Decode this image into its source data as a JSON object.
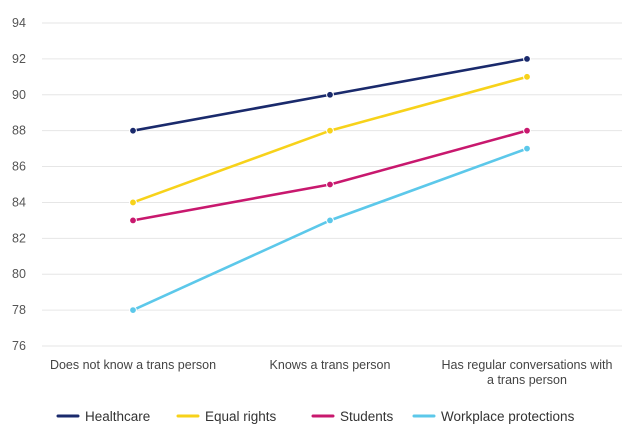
{
  "chart_data": {
    "type": "line",
    "title": "",
    "xlabel": "",
    "ylabel": "",
    "categories": [
      [
        "Does not know a trans person"
      ],
      [
        "Knows a trans person"
      ],
      [
        "Has regular conversations with",
        "a trans person"
      ]
    ],
    "ylim": [
      76,
      94
    ],
    "yticks": [
      76,
      78,
      80,
      82,
      84,
      86,
      88,
      90,
      92,
      94
    ],
    "grid": true,
    "legend_position": "bottom",
    "series": [
      {
        "name": "Healthcare",
        "color": "#1a2a6c",
        "values": [
          88,
          90,
          92
        ]
      },
      {
        "name": "Equal rights",
        "color": "#f7d21a",
        "values": [
          84,
          88,
          91
        ]
      },
      {
        "name": "Students",
        "color": "#c8186e",
        "values": [
          83,
          85,
          88
        ]
      },
      {
        "name": "Workplace protections",
        "color": "#5cc8ea",
        "values": [
          78,
          83,
          87
        ]
      }
    ]
  }
}
